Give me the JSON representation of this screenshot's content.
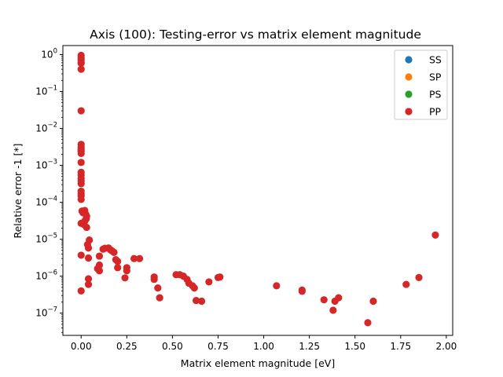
{
  "chart_data": {
    "type": "scatter",
    "title": "Axis (100): Testing-error vs matrix element magnitude",
    "xlabel": "Matrix element magnitude [eV]",
    "ylabel": "Relative error -1 [*]",
    "xlim": [
      -0.1,
      2.035
    ],
    "ylim": [
      2.5e-08,
      1.75
    ],
    "yscale": "log",
    "xticks": [
      0.0,
      0.25,
      0.5,
      0.75,
      1.0,
      1.25,
      1.5,
      1.75,
      2.0
    ],
    "xtick_labels": [
      "0.00",
      "0.25",
      "0.50",
      "0.75",
      "1.00",
      "1.25",
      "1.50",
      "1.75",
      "2.00"
    ],
    "yticks": [
      1e-07,
      1e-06,
      1e-05,
      0.0001,
      0.001,
      0.01,
      0.1,
      1
    ],
    "ytick_labels": [
      {
        "base": "10",
        "exp": "−7"
      },
      {
        "base": "10",
        "exp": "−6"
      },
      {
        "base": "10",
        "exp": "−5"
      },
      {
        "base": "10",
        "exp": "−4"
      },
      {
        "base": "10",
        "exp": "−3"
      },
      {
        "base": "10",
        "exp": "−2"
      },
      {
        "base": "10",
        "exp": "−1"
      },
      {
        "base": "10",
        "exp": "0"
      }
    ],
    "grid": false,
    "legend": "top-right",
    "series": [
      {
        "name": "SS",
        "color": "#1f77b4",
        "points": []
      },
      {
        "name": "SP",
        "color": "#ff7f0e",
        "points": []
      },
      {
        "name": "PS",
        "color": "#2ca02c",
        "points": []
      },
      {
        "name": "PP",
        "color": "#d62728",
        "points": [
          [
            0.0,
            0.95
          ],
          [
            0.0,
            0.82
          ],
          [
            0.0,
            0.72
          ],
          [
            0.0,
            0.62
          ],
          [
            0.0,
            0.58
          ],
          [
            0.0,
            0.4
          ],
          [
            0.0,
            0.03
          ],
          [
            0.0,
            0.0037
          ],
          [
            0.0,
            0.0031
          ],
          [
            0.0,
            0.0027
          ],
          [
            0.0,
            0.0024
          ],
          [
            0.0,
            0.0021
          ],
          [
            0.0,
            0.0012
          ],
          [
            0.0,
            0.00065
          ],
          [
            0.0,
            0.00055
          ],
          [
            0.0,
            0.00045
          ],
          [
            0.0,
            0.00038
          ],
          [
            0.0,
            0.00032
          ],
          [
            0.0,
            0.0002
          ],
          [
            0.0,
            0.00017
          ],
          [
            0.0,
            0.00015
          ],
          [
            0.0,
            0.00012
          ],
          [
            0.005,
            5.8e-05
          ],
          [
            0.01,
            5.2e-05
          ],
          [
            0.02,
            6e-05
          ],
          [
            0.025,
            4.8e-05
          ],
          [
            0.03,
            4.2e-05
          ],
          [
            0.028,
            3.6e-05
          ],
          [
            0.02,
            3.1e-05
          ],
          [
            0.0,
            2.7e-05
          ],
          [
            0.015,
            2.5e-05
          ],
          [
            0.03,
            2.1e-05
          ],
          [
            0.045,
            9.5e-06
          ],
          [
            0.035,
            7.2e-06
          ],
          [
            0.04,
            5.8e-06
          ],
          [
            0.0,
            3.7e-06
          ],
          [
            0.04,
            3.1e-06
          ],
          [
            0.04,
            8.5e-07
          ],
          [
            0.04,
            6e-07
          ],
          [
            0.0,
            4e-07
          ],
          [
            0.1,
            3.5e-06
          ],
          [
            0.1,
            2e-06
          ],
          [
            0.09,
            1.6e-06
          ],
          [
            0.1,
            1.4e-06
          ],
          [
            0.12,
            5.4e-06
          ],
          [
            0.13,
            5.7e-06
          ],
          [
            0.15,
            5.8e-06
          ],
          [
            0.16,
            5.2e-06
          ],
          [
            0.17,
            4.8e-06
          ],
          [
            0.18,
            4.4e-06
          ],
          [
            0.19,
            2.8e-06
          ],
          [
            0.2,
            2.5e-06
          ],
          [
            0.2,
            1.7e-06
          ],
          [
            0.25,
            1.7e-06
          ],
          [
            0.25,
            1.4e-06
          ],
          [
            0.24,
            9e-07
          ],
          [
            0.29,
            3e-06
          ],
          [
            0.32,
            3e-06
          ],
          [
            0.4,
            9.5e-07
          ],
          [
            0.4,
            8.2e-07
          ],
          [
            0.42,
            4.8e-07
          ],
          [
            0.43,
            2.6e-07
          ],
          [
            0.52,
            1.1e-06
          ],
          [
            0.54,
            1.1e-06
          ],
          [
            0.56,
            1e-06
          ],
          [
            0.58,
            8.2e-07
          ],
          [
            0.59,
            6.5e-07
          ],
          [
            0.61,
            5.5e-07
          ],
          [
            0.62,
            4.8e-07
          ],
          [
            0.63,
            2.2e-07
          ],
          [
            0.66,
            2.1e-07
          ],
          [
            0.7,
            7e-07
          ],
          [
            0.75,
            9.2e-07
          ],
          [
            0.76,
            9.5e-07
          ],
          [
            1.07,
            5.5e-07
          ],
          [
            1.21,
            3.9e-07
          ],
          [
            1.21,
            4.2e-07
          ],
          [
            1.33,
            2.3e-07
          ],
          [
            1.38,
            1.2e-07
          ],
          [
            1.39,
            2.1e-07
          ],
          [
            1.41,
            2.6e-07
          ],
          [
            1.57,
            5.5e-08
          ],
          [
            1.6,
            2.1e-07
          ],
          [
            1.78,
            6e-07
          ],
          [
            1.85,
            9.2e-07
          ],
          [
            1.94,
            1.3e-05
          ]
        ]
      }
    ]
  }
}
